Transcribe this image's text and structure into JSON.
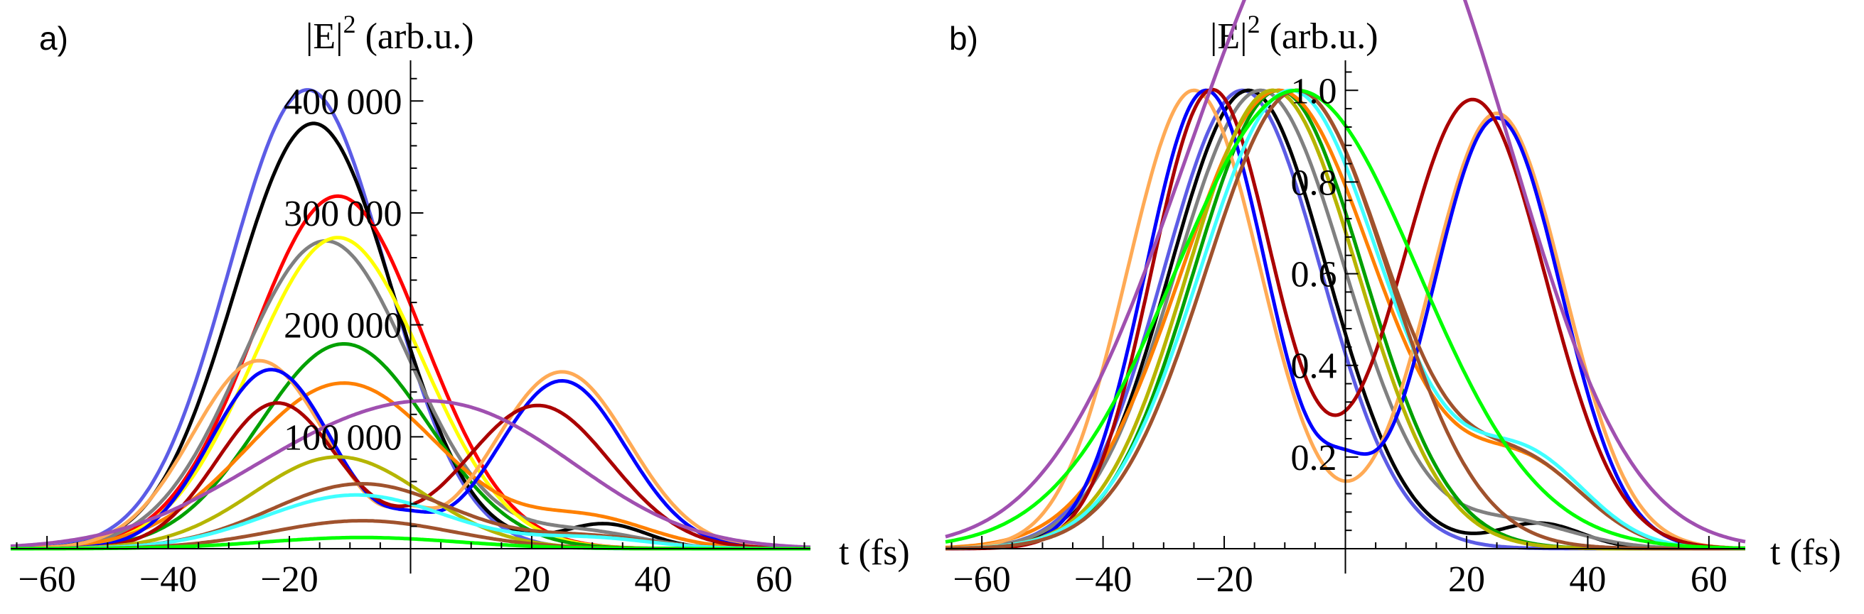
{
  "chart_data": [
    {
      "panel_label": "a)",
      "type": "line",
      "ylabel_main": "|E|",
      "ylabel_sup": "2",
      "ylabel_unit": " (arb.u.)",
      "xlabel": "t (fs)",
      "xlim": [
        -66,
        66
      ],
      "ylim": [
        0,
        430000
      ],
      "xticks": [
        -60,
        -40,
        -20,
        20,
        40,
        60
      ],
      "xtick_labels": [
        "−60",
        "−40",
        "−20",
        "20",
        "40",
        "60"
      ],
      "yticks": [
        100000,
        200000,
        300000,
        400000
      ],
      "ytick_labels": [
        "100 000",
        "200 000",
        "300 000",
        "400 000"
      ],
      "series": [
        {
          "name": "slate-blue",
          "color": "#5c5ce6",
          "components": [
            {
              "a": 410000,
              "mu": -17,
              "sigma": 13
            }
          ]
        },
        {
          "name": "black",
          "color": "#000000",
          "components": [
            {
              "a": 380000,
              "mu": -16,
              "sigma": 13
            },
            {
              "a": 22000,
              "mu": 32,
              "sigma": 7
            }
          ]
        },
        {
          "name": "red",
          "color": "#ff0000",
          "components": [
            {
              "a": 315000,
              "mu": -12,
              "sigma": 14
            }
          ]
        },
        {
          "name": "gray",
          "color": "#808080",
          "components": [
            {
              "a": 275000,
              "mu": -14,
              "sigma": 14
            },
            {
              "a": 15000,
              "mu": 28,
              "sigma": 10
            }
          ]
        },
        {
          "name": "yellow",
          "color": "#ffff00",
          "components": [
            {
              "a": 278000,
              "mu": -12,
              "sigma": 14
            }
          ]
        },
        {
          "name": "green",
          "color": "#00a000",
          "components": [
            {
              "a": 183000,
              "mu": -11,
              "sigma": 14
            }
          ]
        },
        {
          "name": "orange",
          "color": "#ff8000",
          "components": [
            {
              "a": 148000,
              "mu": -11,
              "sigma": 16
            },
            {
              "a": 25000,
              "mu": 30,
              "sigma": 10
            }
          ]
        },
        {
          "name": "light-orange",
          "color": "#ffaa55",
          "components": [
            {
              "a": 168000,
              "mu": -25,
              "sigma": 11
            },
            {
              "a": 158000,
              "mu": 25,
              "sigma": 11
            },
            {
              "a": 14000,
              "mu": 0,
              "sigma": 3
            }
          ]
        },
        {
          "name": "blue",
          "color": "#0000ff",
          "components": [
            {
              "a": 160000,
              "mu": -23,
              "sigma": 10
            },
            {
              "a": 150000,
              "mu": 25,
              "sigma": 10.5
            },
            {
              "a": 14000,
              "mu": 0,
              "sigma": 4
            }
          ]
        },
        {
          "name": "dark-red",
          "color": "#aa0000",
          "components": [
            {
              "a": 130000,
              "mu": -22,
              "sigma": 10
            },
            {
              "a": 128000,
              "mu": 21,
              "sigma": 12
            }
          ]
        },
        {
          "name": "purple",
          "color": "#a050b0",
          "components": [
            {
              "a": 85000,
              "mu": -12,
              "sigma": 20
            },
            {
              "a": 82000,
              "mu": 14,
              "sigma": 18
            }
          ]
        },
        {
          "name": "olive",
          "color": "#b5b500",
          "components": [
            {
              "a": 82000,
              "mu": -12,
              "sigma": 14
            }
          ]
        },
        {
          "name": "brown",
          "color": "#a0522d",
          "components": [
            {
              "a": 58000,
              "mu": -8,
              "sigma": 15
            },
            {
              "a": 10000,
              "mu": 30,
              "sigma": 10
            }
          ]
        },
        {
          "name": "cyan",
          "color": "#40ffff",
          "components": [
            {
              "a": 48000,
              "mu": -9,
              "sigma": 15
            },
            {
              "a": 9000,
              "mu": 30,
              "sigma": 10
            }
          ]
        },
        {
          "name": "sienna",
          "color": "#a0522d",
          "components": [
            {
              "a": 25000,
              "mu": -8,
              "sigma": 15
            }
          ]
        },
        {
          "name": "bright-green",
          "color": "#00ff00",
          "components": [
            {
              "a": 10000,
              "mu": -8,
              "sigma": 16
            }
          ]
        }
      ]
    },
    {
      "panel_label": "b)",
      "type": "line",
      "ylabel_main": "|E|",
      "ylabel_sup": "2",
      "ylabel_unit": " (arb.u.)",
      "xlabel": "t (fs)",
      "xlim": [
        -66,
        66
      ],
      "ylim": [
        0,
        1.05
      ],
      "xticks": [
        -60,
        -40,
        -20,
        20,
        40,
        60
      ],
      "xtick_labels": [
        "−60",
        "−40",
        "−20",
        "20",
        "40",
        "60"
      ],
      "yticks": [
        0.2,
        0.4,
        0.6,
        0.8,
        1.0
      ],
      "ytick_labels": [
        "0.2",
        "0.4",
        "0.6",
        "0.8",
        "1.0"
      ],
      "series": [
        {
          "name": "slate-blue",
          "color": "#5c5ce6",
          "components": [
            {
              "a": 1.0,
              "mu": -17,
              "sigma": 13
            }
          ]
        },
        {
          "name": "black",
          "color": "#000000",
          "components": [
            {
              "a": 1.0,
              "mu": -16,
              "sigma": 13
            },
            {
              "a": 0.055,
              "mu": 32,
              "sigma": 7
            }
          ]
        },
        {
          "name": "red",
          "color": "#ff0000",
          "components": [
            {
              "a": 1.0,
              "mu": -12,
              "sigma": 14
            }
          ]
        },
        {
          "name": "gray",
          "color": "#808080",
          "components": [
            {
              "a": 1.0,
              "mu": -14,
              "sigma": 14
            },
            {
              "a": 0.055,
              "mu": 28,
              "sigma": 10
            }
          ]
        },
        {
          "name": "yellow",
          "color": "#ffff00",
          "components": [
            {
              "a": 1.0,
              "mu": -12,
              "sigma": 14
            }
          ]
        },
        {
          "name": "green",
          "color": "#00a000",
          "components": [
            {
              "a": 1.0,
              "mu": -11,
              "sigma": 14
            }
          ]
        },
        {
          "name": "orange",
          "color": "#ff8000",
          "components": [
            {
              "a": 1.0,
              "mu": -11,
              "sigma": 16
            },
            {
              "a": 0.17,
              "mu": 30,
              "sigma": 10
            }
          ]
        },
        {
          "name": "light-orange",
          "color": "#ffaa55",
          "components": [
            {
              "a": 1.0,
              "mu": -25,
              "sigma": 11
            },
            {
              "a": 0.95,
              "mu": 25,
              "sigma": 11
            }
          ]
        },
        {
          "name": "blue",
          "color": "#0000ff",
          "components": [
            {
              "a": 1.0,
              "mu": -23,
              "sigma": 10
            },
            {
              "a": 0.94,
              "mu": 25,
              "sigma": 10.5
            },
            {
              "a": 0.09,
              "mu": 0,
              "sigma": 4
            }
          ]
        },
        {
          "name": "dark-red",
          "color": "#aa0000",
          "components": [
            {
              "a": 1.0,
              "mu": -22,
              "sigma": 10
            },
            {
              "a": 0.98,
              "mu": 21,
              "sigma": 12
            }
          ]
        },
        {
          "name": "purple",
          "color": "#a050b0",
          "components": [
            {
              "a": 1.0,
              "mu": -12,
              "sigma": 20
            },
            {
              "a": 0.96,
              "mu": 14,
              "sigma": 18
            }
          ]
        },
        {
          "name": "olive",
          "color": "#b5b500",
          "components": [
            {
              "a": 1.0,
              "mu": -12,
              "sigma": 14
            }
          ]
        },
        {
          "name": "brown",
          "color": "#a0522d",
          "components": [
            {
              "a": 1.0,
              "mu": -8,
              "sigma": 15
            },
            {
              "a": 0.17,
              "mu": 30,
              "sigma": 10
            }
          ]
        },
        {
          "name": "cyan",
          "color": "#40ffff",
          "components": [
            {
              "a": 1.0,
              "mu": -9,
              "sigma": 15
            },
            {
              "a": 0.19,
              "mu": 30,
              "sigma": 10
            }
          ]
        },
        {
          "name": "sienna",
          "color": "#a0522d",
          "components": [
            {
              "a": 1.0,
              "mu": -8,
              "sigma": 15
            }
          ]
        },
        {
          "name": "bright-green",
          "color": "#00ff00",
          "components": [
            {
              "a": 1.0,
              "mu": -8,
              "sigma": 20
            }
          ]
        }
      ]
    }
  ]
}
